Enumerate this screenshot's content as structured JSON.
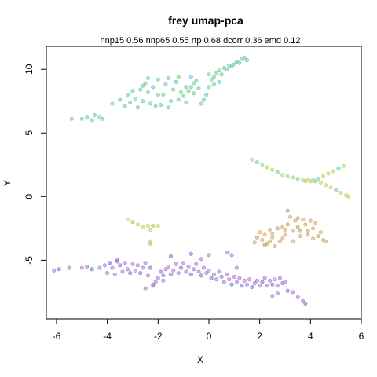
{
  "chart_data": {
    "type": "scatter",
    "title": "frey umap-pca",
    "subtitle": "nnp15 0.56 nnp65 0.55 rtp 0.68 dcorr 0.36 emd 0.12",
    "xlabel": "X",
    "ylabel": "Y",
    "xlim": [
      -6.4,
      6.0
    ],
    "ylim": [
      -9.6,
      11.8
    ],
    "xticks": [
      -6,
      -4,
      -2,
      0,
      2,
      4,
      6
    ],
    "yticks": [
      -5,
      0,
      5,
      10
    ],
    "grid": false,
    "legend": "none",
    "clusters": [
      {
        "id": "top-band",
        "color": "#55c37a",
        "alt_color": "#3cbcc0",
        "points": [
          [
            -5.4,
            6.1
          ],
          [
            -5.0,
            6.1
          ],
          [
            -4.6,
            6.0
          ],
          [
            -4.3,
            6.2
          ],
          [
            -4.8,
            6.2
          ],
          [
            -4.5,
            6.4
          ],
          [
            -4.2,
            6.1
          ],
          [
            -3.8,
            7.3
          ],
          [
            -3.5,
            7.6
          ],
          [
            -3.2,
            8.0
          ],
          [
            -3.0,
            8.3
          ],
          [
            -2.9,
            7.7
          ],
          [
            -2.7,
            8.4
          ],
          [
            -2.6,
            7.5
          ],
          [
            -2.5,
            8.9
          ],
          [
            -2.4,
            8.2
          ],
          [
            -2.3,
            7.3
          ],
          [
            -2.2,
            8.6
          ],
          [
            -2.0,
            9.2
          ],
          [
            -1.9,
            7.2
          ],
          [
            -1.8,
            8.0
          ],
          [
            -1.7,
            8.8
          ],
          [
            -1.6,
            9.3
          ],
          [
            -1.5,
            7.5
          ],
          [
            -1.4,
            8.4
          ],
          [
            -1.3,
            9.0
          ],
          [
            -1.2,
            7.6
          ],
          [
            -1.1,
            8.2
          ],
          [
            -1.0,
            7.9
          ],
          [
            -0.9,
            7.4
          ],
          [
            -0.8,
            8.3
          ],
          [
            -0.7,
            8.6
          ],
          [
            -0.6,
            8.9
          ],
          [
            -0.5,
            9.1
          ],
          [
            -0.4,
            8.5
          ],
          [
            -0.3,
            7.3
          ],
          [
            -0.2,
            7.6
          ],
          [
            -0.1,
            8.0
          ],
          [
            0.0,
            8.6
          ],
          [
            0.1,
            9.2
          ],
          [
            0.2,
            9.4
          ],
          [
            0.3,
            9.7
          ],
          [
            0.4,
            9.9
          ],
          [
            0.5,
            9.6
          ],
          [
            0.6,
            10.1
          ],
          [
            0.7,
            10.0
          ],
          [
            0.8,
            10.3
          ],
          [
            0.9,
            10.2
          ],
          [
            1.0,
            10.4
          ],
          [
            1.1,
            10.6
          ],
          [
            1.2,
            10.5
          ],
          [
            1.3,
            10.8
          ],
          [
            1.4,
            10.9
          ],
          [
            1.5,
            10.7
          ],
          [
            -3.3,
            7.1
          ],
          [
            -2.8,
            7.0
          ],
          [
            -2.1,
            7.1
          ],
          [
            -1.6,
            7.0
          ],
          [
            -0.9,
            8.6
          ],
          [
            -0.6,
            8.1
          ],
          [
            0.2,
            8.8
          ],
          [
            0.4,
            9.0
          ],
          [
            -2.4,
            9.3
          ],
          [
            -2.0,
            8.0
          ],
          [
            -1.2,
            9.4
          ],
          [
            -0.7,
            9.4
          ],
          [
            0.0,
            9.6
          ],
          [
            -3.1,
            7.4
          ],
          [
            -2.6,
            8.7
          ]
        ]
      },
      {
        "id": "right-v-shape",
        "color": "#a9c94c",
        "alt_color": "#52c3a0",
        "points": [
          [
            1.7,
            2.9
          ],
          [
            1.9,
            2.7
          ],
          [
            2.1,
            2.5
          ],
          [
            2.3,
            2.3
          ],
          [
            2.5,
            2.1
          ],
          [
            2.7,
            1.9
          ],
          [
            2.9,
            1.7
          ],
          [
            3.1,
            1.6
          ],
          [
            3.3,
            1.5
          ],
          [
            3.5,
            1.4
          ],
          [
            3.7,
            1.3
          ],
          [
            3.9,
            1.3
          ],
          [
            4.1,
            1.3
          ],
          [
            4.3,
            1.4
          ],
          [
            4.5,
            1.6
          ],
          [
            4.7,
            1.8
          ],
          [
            4.9,
            2.0
          ],
          [
            5.1,
            2.2
          ],
          [
            5.3,
            2.4
          ],
          [
            3.8,
            1.2
          ],
          [
            4.0,
            1.2
          ],
          [
            4.2,
            1.2
          ],
          [
            4.4,
            1.1
          ],
          [
            4.6,
            0.9
          ],
          [
            4.8,
            0.7
          ],
          [
            5.0,
            0.5
          ],
          [
            5.2,
            0.3
          ],
          [
            5.4,
            0.1
          ],
          [
            5.5,
            0.0
          ]
        ]
      },
      {
        "id": "small-green",
        "color": "#a9c94c",
        "alt_color": "#c99a3b",
        "points": [
          [
            -3.2,
            -1.8
          ],
          [
            -3.0,
            -2.0
          ],
          [
            -2.8,
            -2.2
          ],
          [
            -2.6,
            -2.4
          ],
          [
            -2.4,
            -2.3
          ],
          [
            -2.2,
            -2.3
          ],
          [
            -2.0,
            -2.3
          ],
          [
            -2.3,
            -2.6
          ],
          [
            -2.3,
            -3.5
          ],
          [
            -2.3,
            -3.7
          ]
        ]
      },
      {
        "id": "right-arch",
        "color": "#c9944a",
        "alt_color": "#9a9a3b",
        "points": [
          [
            1.8,
            -3.6
          ],
          [
            1.9,
            -3.2
          ],
          [
            2.0,
            -2.8
          ],
          [
            2.1,
            -3.4
          ],
          [
            2.2,
            -3.0
          ],
          [
            2.3,
            -3.7
          ],
          [
            2.4,
            -2.6
          ],
          [
            2.5,
            -3.2
          ],
          [
            2.6,
            -3.9
          ],
          [
            2.7,
            -2.5
          ],
          [
            2.8,
            -3.5
          ],
          [
            2.9,
            -2.4
          ],
          [
            3.0,
            -3.0
          ],
          [
            3.1,
            -2.2
          ],
          [
            3.2,
            -1.6
          ],
          [
            3.3,
            -2.7
          ],
          [
            3.4,
            -1.9
          ],
          [
            3.5,
            -2.4
          ],
          [
            3.6,
            -3.1
          ],
          [
            3.7,
            -1.8
          ],
          [
            3.8,
            -2.2
          ],
          [
            3.9,
            -2.7
          ],
          [
            4.0,
            -1.9
          ],
          [
            4.1,
            -2.5
          ],
          [
            4.2,
            -2.1
          ],
          [
            4.3,
            -3.1
          ],
          [
            4.4,
            -2.8
          ],
          [
            4.5,
            -3.4
          ],
          [
            4.6,
            -3.5
          ],
          [
            2.2,
            -3.8
          ],
          [
            2.5,
            -2.9
          ],
          [
            2.9,
            -3.3
          ],
          [
            3.3,
            -3.5
          ],
          [
            3.6,
            -2.7
          ],
          [
            3.9,
            -3.0
          ],
          [
            3.0,
            -2.6
          ],
          [
            3.5,
            -1.7
          ],
          [
            3.1,
            -1.1
          ],
          [
            4.1,
            -3.3
          ],
          [
            2.4,
            -3.5
          ]
        ]
      },
      {
        "id": "bottom-band",
        "color": "#9a5bc8",
        "alt_color": "#4a63c2",
        "points": [
          [
            -6.1,
            -5.8
          ],
          [
            -5.9,
            -5.7
          ],
          [
            -5.5,
            -5.6
          ],
          [
            -5.0,
            -5.6
          ],
          [
            -4.8,
            -5.5
          ],
          [
            -4.6,
            -5.7
          ],
          [
            -4.3,
            -5.6
          ],
          [
            -4.1,
            -5.4
          ],
          [
            -4.0,
            -6.0
          ],
          [
            -3.9,
            -5.2
          ],
          [
            -3.8,
            -5.6
          ],
          [
            -3.7,
            -6.1
          ],
          [
            -3.6,
            -5.0
          ],
          [
            -3.5,
            -5.4
          ],
          [
            -3.4,
            -5.9
          ],
          [
            -3.3,
            -5.2
          ],
          [
            -3.2,
            -5.7
          ],
          [
            -3.1,
            -6.0
          ],
          [
            -3.0,
            -5.3
          ],
          [
            -2.9,
            -5.8
          ],
          [
            -2.8,
            -5.4
          ],
          [
            -2.7,
            -6.0
          ],
          [
            -2.6,
            -5.6
          ],
          [
            -2.5,
            -5.2
          ],
          [
            -2.4,
            -6.2
          ],
          [
            -2.3,
            -5.6
          ],
          [
            -2.2,
            -7.0
          ],
          [
            -2.1,
            -6.7
          ],
          [
            -2.0,
            -6.4
          ],
          [
            -1.9,
            -5.9
          ],
          [
            -1.8,
            -6.2
          ],
          [
            -1.7,
            -5.7
          ],
          [
            -1.6,
            -5.5
          ],
          [
            -1.5,
            -6.1
          ],
          [
            -1.4,
            -5.8
          ],
          [
            -1.3,
            -5.3
          ],
          [
            -1.2,
            -6.0
          ],
          [
            -1.1,
            -5.6
          ],
          [
            -1.0,
            -5.2
          ],
          [
            -0.9,
            -5.9
          ],
          [
            -0.8,
            -5.5
          ],
          [
            -0.7,
            -6.1
          ],
          [
            -0.6,
            -5.7
          ],
          [
            -0.5,
            -5.3
          ],
          [
            -0.4,
            -5.9
          ],
          [
            -0.3,
            -6.2
          ],
          [
            -0.2,
            -5.6
          ],
          [
            -0.1,
            -6.0
          ],
          [
            0.0,
            -5.8
          ],
          [
            0.1,
            -6.4
          ],
          [
            0.2,
            -6.1
          ],
          [
            0.3,
            -6.5
          ],
          [
            0.4,
            -5.9
          ],
          [
            0.5,
            -6.3
          ],
          [
            0.6,
            -6.7
          ],
          [
            0.7,
            -6.1
          ],
          [
            0.8,
            -6.5
          ],
          [
            0.9,
            -6.9
          ],
          [
            1.0,
            -6.3
          ],
          [
            1.1,
            -6.7
          ],
          [
            1.2,
            -6.4
          ],
          [
            1.3,
            -7.0
          ],
          [
            1.4,
            -6.6
          ],
          [
            1.5,
            -6.9
          ],
          [
            1.6,
            -6.5
          ],
          [
            1.7,
            -7.1
          ],
          [
            1.8,
            -6.8
          ],
          [
            1.9,
            -6.6
          ],
          [
            2.0,
            -7.0
          ],
          [
            2.1,
            -6.7
          ],
          [
            2.2,
            -6.4
          ],
          [
            2.3,
            -7.0
          ],
          [
            2.4,
            -6.6
          ],
          [
            2.5,
            -6.9
          ],
          [
            2.6,
            -6.5
          ],
          [
            2.7,
            -7.0
          ],
          [
            2.8,
            -6.4
          ],
          [
            2.9,
            -6.8
          ],
          [
            3.0,
            -6.7
          ],
          [
            2.5,
            -7.8
          ],
          [
            2.7,
            -7.6
          ],
          [
            3.1,
            -7.4
          ],
          [
            3.3,
            -7.5
          ],
          [
            3.5,
            -7.9
          ],
          [
            3.7,
            -8.2
          ],
          [
            3.8,
            -8.4
          ],
          [
            -2.2,
            -6.9
          ],
          [
            -2.5,
            -7.2
          ],
          [
            -1.8,
            -6.6
          ],
          [
            -0.7,
            -4.5
          ],
          [
            -0.3,
            -4.9
          ],
          [
            0.7,
            -4.4
          ],
          [
            0.9,
            -4.6
          ],
          [
            -1.5,
            -4.7
          ],
          [
            0.0,
            -4.6
          ],
          [
            -3.6,
            -5.1
          ],
          [
            1.1,
            -5.6
          ]
        ]
      }
    ]
  }
}
